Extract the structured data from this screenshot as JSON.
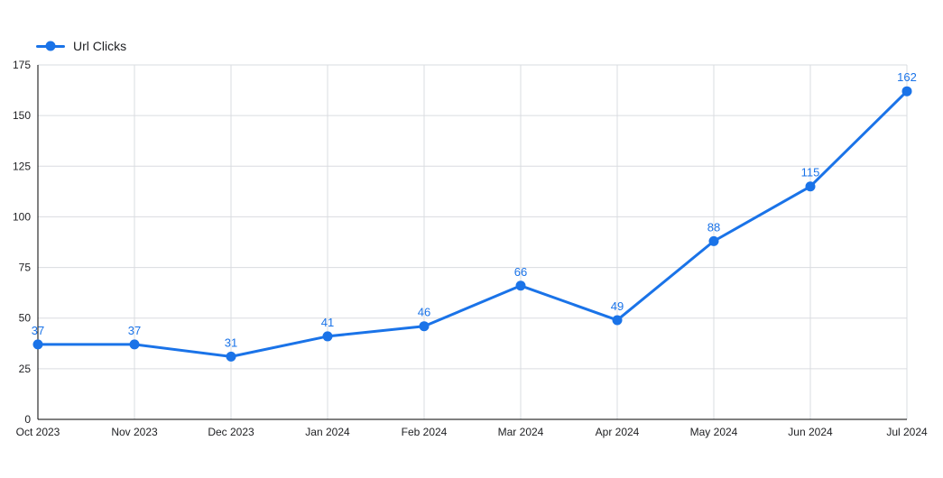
{
  "legend": {
    "label": "Url Clicks"
  },
  "colors": {
    "line": "#1a73e8",
    "point": "#1a73e8",
    "point_label": "#1a73e8",
    "grid": "#dadce0",
    "axis": "#000000",
    "text": "#202124",
    "background": "#ffffff"
  },
  "chart_data": {
    "type": "line",
    "title": "",
    "xlabel": "",
    "ylabel": "",
    "x": [
      "Oct 2023",
      "Nov 2023",
      "Dec 2023",
      "Jan 2024",
      "Feb 2024",
      "Mar 2024",
      "Apr 2024",
      "May 2024",
      "Jun 2024",
      "Jul 2024"
    ],
    "series": [
      {
        "name": "Url Clicks",
        "values": [
          37,
          37,
          31,
          41,
          46,
          66,
          49,
          88,
          115,
          162
        ]
      }
    ],
    "ylim": [
      0,
      175
    ],
    "yticks": [
      0,
      25,
      50,
      75,
      100,
      125,
      150,
      175
    ],
    "grid": true,
    "legend_position": "top-left",
    "point_labels": true
  }
}
